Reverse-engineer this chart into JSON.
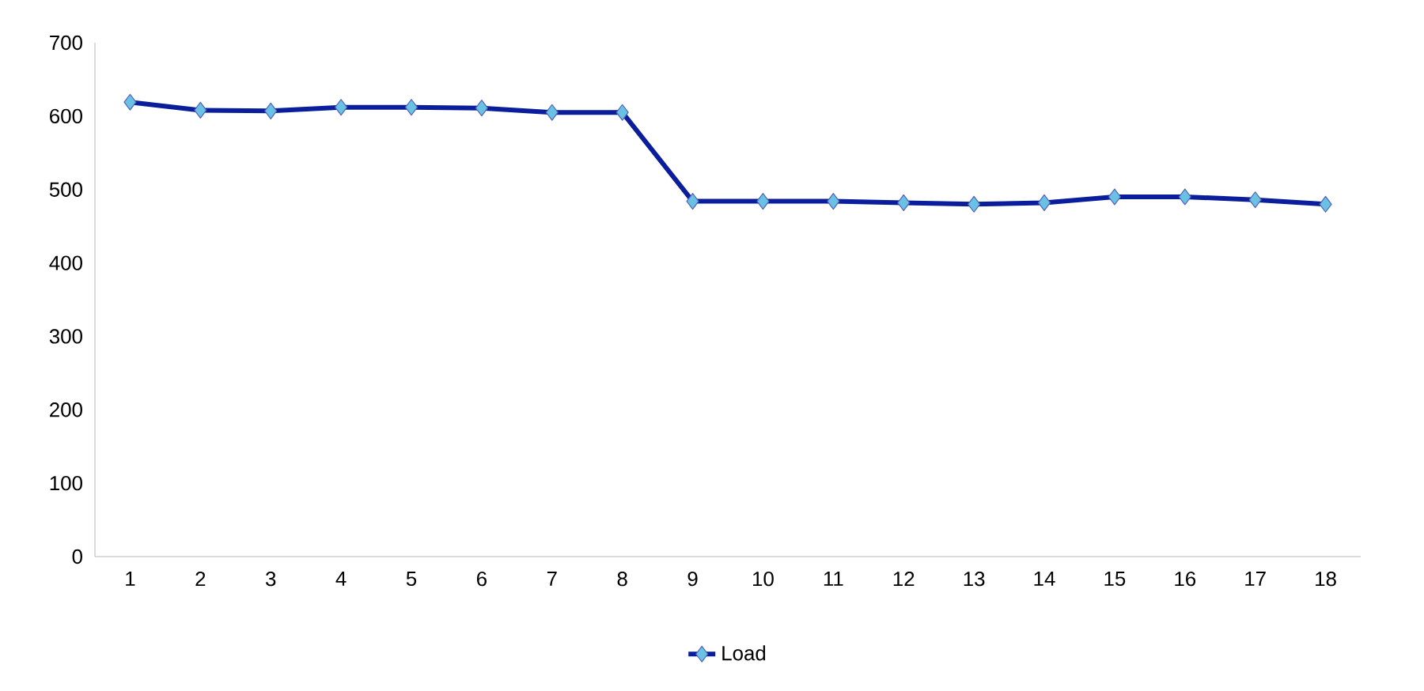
{
  "chart_data": {
    "type": "line",
    "categories": [
      "1",
      "2",
      "3",
      "4",
      "5",
      "6",
      "7",
      "8",
      "9",
      "10",
      "11",
      "12",
      "13",
      "14",
      "15",
      "16",
      "17",
      "18"
    ],
    "series": [
      {
        "name": "Load",
        "color": "#0a1e9b",
        "values": [
          619,
          608,
          607,
          612,
          612,
          611,
          605,
          605,
          484,
          484,
          484,
          482,
          480,
          482,
          490,
          490,
          486,
          480
        ]
      }
    ],
    "ylim": [
      0,
      700
    ],
    "yticks": [
      0,
      100,
      200,
      300,
      400,
      500,
      600,
      700
    ],
    "grid": false,
    "legend": "bottom",
    "marker": "diamond",
    "line_style": "solid"
  }
}
